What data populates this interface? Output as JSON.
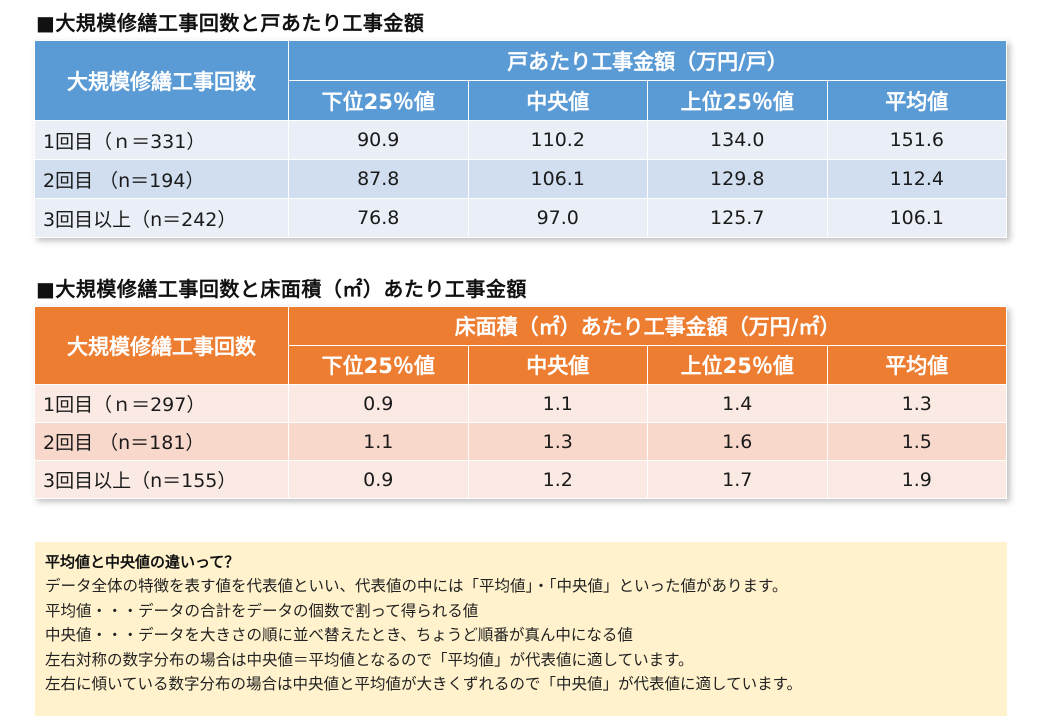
{
  "section1": {
    "title": "■大規模修繕工事回数と戸あたり工事金額",
    "row_header": "大規模修繕工事回数",
    "group_header": "戸あたり工事金額（万円/戸）",
    "columns": [
      "下位25％値",
      "中央値",
      "上位25％値",
      "平均値"
    ],
    "rows": [
      {
        "label": "1回目（ｎ＝331）",
        "values": [
          "90.9",
          "110.2",
          "134.0",
          "151.6"
        ]
      },
      {
        "label": "2回目 （n＝194）",
        "values": [
          "87.8",
          "106.1",
          "129.8",
          "112.4"
        ]
      },
      {
        "label": "3回目以上（n＝242）",
        "values": [
          "76.8",
          "97.0",
          "125.7",
          "106.1"
        ]
      }
    ]
  },
  "section2": {
    "title": "■大規模修繕工事回数と床面積（㎡）あたり工事金額",
    "row_header": "大規模修繕工事回数",
    "group_header": "床面積（㎡）あたり工事金額（万円/㎡）",
    "columns": [
      "下位25％値",
      "中央値",
      "上位25％値",
      "平均値"
    ],
    "rows": [
      {
        "label": "1回目（ｎ＝297）",
        "values": [
          "0.9",
          "1.1",
          "1.4",
          "1.3"
        ]
      },
      {
        "label": "2回目 （n＝181）",
        "values": [
          "1.1",
          "1.3",
          "1.6",
          "1.5"
        ]
      },
      {
        "label": "3回目以上（n＝155）",
        "values": [
          "0.9",
          "1.2",
          "1.7",
          "1.9"
        ]
      }
    ]
  },
  "note": {
    "title": "平均値と中央値の違いって？",
    "lines": [
      "データ全体の特徴を表す値を代表値といい、代表値の中には「平均値」・「中央値」といった値があります。",
      "平均値・・・データの合計をデータの個数で割って得られる値",
      "中央値・・・データを大きさの順に並べ替えたとき、ちょうど順番が真ん中になる値",
      "左右対称の数字分布の場合は中央値＝平均値となるので「平均値」が代表値に適しています。",
      "左右に傾いている数字分布の場合は中央値と平均値が大きくずれるので「中央値」が代表値に適しています。"
    ]
  },
  "colors": {
    "blue_header": "#5b9bd5",
    "blue_row_light": "#e9eef7",
    "blue_row_dark": "#d0def0",
    "orange_header": "#ed7d31",
    "orange_row_light": "#fbeae4",
    "orange_row_dark": "#f8d8cb",
    "note_background": "#fff2cc"
  }
}
